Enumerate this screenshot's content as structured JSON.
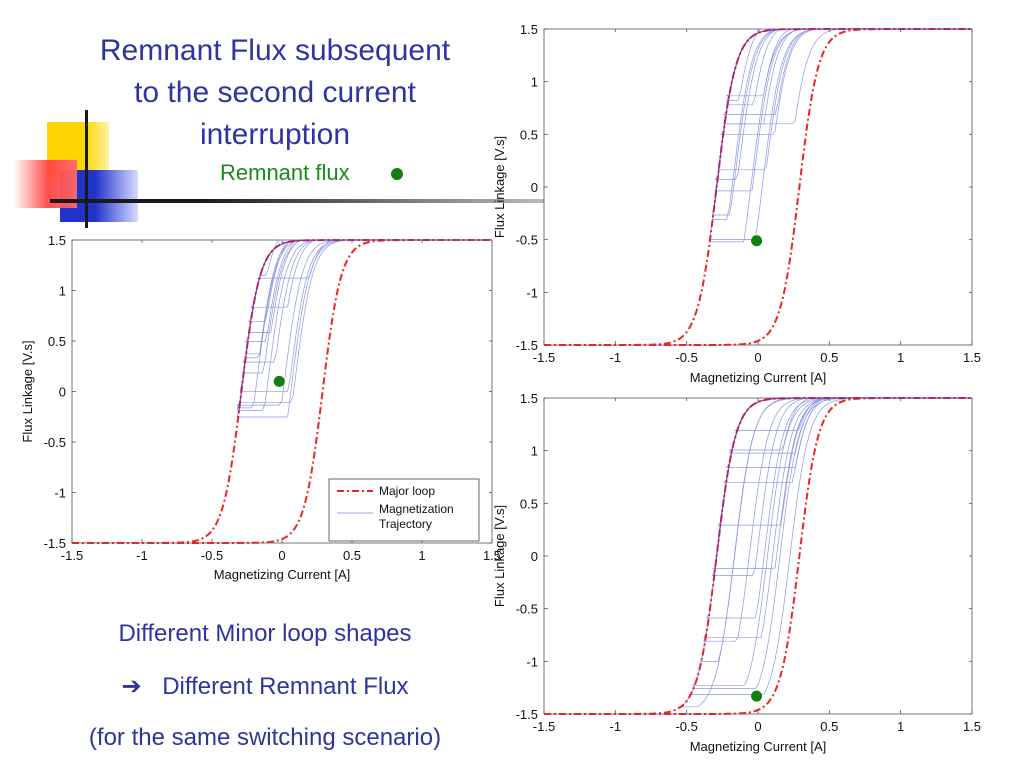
{
  "slide": {
    "title_lines": [
      "Remnant Flux subsequent",
      "to the second current",
      "interruption"
    ],
    "remnant_label": "Remnant flux",
    "bottom_line1": "Different Minor loop shapes",
    "bottom_arrow": "➔",
    "bottom_line2": "Different Remnant Flux",
    "bottom_line3": "(for the same switching scenario)",
    "colors": {
      "title": "#2f35a0",
      "major_loop": "#e8262a",
      "trajectory": "#7a86e0",
      "remnant_point": "#108010",
      "deco_yellow": "#ffd400",
      "deco_blue": "#2233cc",
      "deco_red": "#ff4444"
    }
  },
  "chart_data": [
    {
      "type": "line",
      "xlabel": "Magnetizing Current [A]",
      "ylabel": "Flux Linkage [V.s]",
      "xlim": [
        -1.5,
        1.5
      ],
      "ylim": [
        -1.5,
        1.5
      ],
      "xticks": [
        "-1.5",
        "-1",
        "-0.5",
        "0",
        "0.5",
        "1",
        "1.5"
      ],
      "yticks": [
        "1.5",
        "1",
        "0.5",
        "0",
        "-0.5",
        "-1",
        "-1.5"
      ],
      "legend": {
        "placement": "bottom-right",
        "entries": [
          "Major loop",
          "Magnetization",
          "Trajectory"
        ]
      },
      "series": [
        {
          "name": "Major loop",
          "style": "dash-dot",
          "coercive_current": 0.29,
          "saturation_flux": 1.5
        },
        {
          "name": "Magnetization Trajectory",
          "style": "thin"
        }
      ],
      "remnant_point": {
        "x": -0.02,
        "y": 0.1
      }
    },
    {
      "type": "line",
      "xlabel": "Magnetizing Current [A]",
      "ylabel": "Flux Linkage [V.s]",
      "xlim": [
        -1.5,
        1.5
      ],
      "ylim": [
        -1.5,
        1.5
      ],
      "xticks": [
        "-1.5",
        "-1",
        "-0.5",
        "0",
        "0.5",
        "1",
        "1.5"
      ],
      "yticks": [
        "1.5",
        "1",
        "0.5",
        "0",
        "-0.5",
        "-1",
        "-1.5"
      ],
      "series": [
        {
          "name": "Major loop",
          "style": "dash-dot",
          "coercive_current": 0.29,
          "saturation_flux": 1.5
        },
        {
          "name": "Magnetization Trajectory",
          "style": "thin"
        }
      ],
      "remnant_point": {
        "x": -0.01,
        "y": -0.51
      }
    },
    {
      "type": "line",
      "xlabel": "Magnetizing Current [A]",
      "ylabel": "Flux Linkage [V.s]",
      "xlim": [
        -1.5,
        1.5
      ],
      "ylim": [
        -1.5,
        1.5
      ],
      "xticks": [
        "-1.5",
        "-1",
        "-0.5",
        "0",
        "0.5",
        "1",
        "1.5"
      ],
      "yticks": [
        "1.5",
        "1",
        "0.5",
        "0",
        "-0.5",
        "-1",
        "-1.5"
      ],
      "series": [
        {
          "name": "Major loop",
          "style": "dash-dot",
          "coercive_current": 0.29,
          "saturation_flux": 1.5
        },
        {
          "name": "Magnetization Trajectory",
          "style": "thin"
        }
      ],
      "remnant_point": {
        "x": -0.01,
        "y": -1.33
      }
    }
  ]
}
